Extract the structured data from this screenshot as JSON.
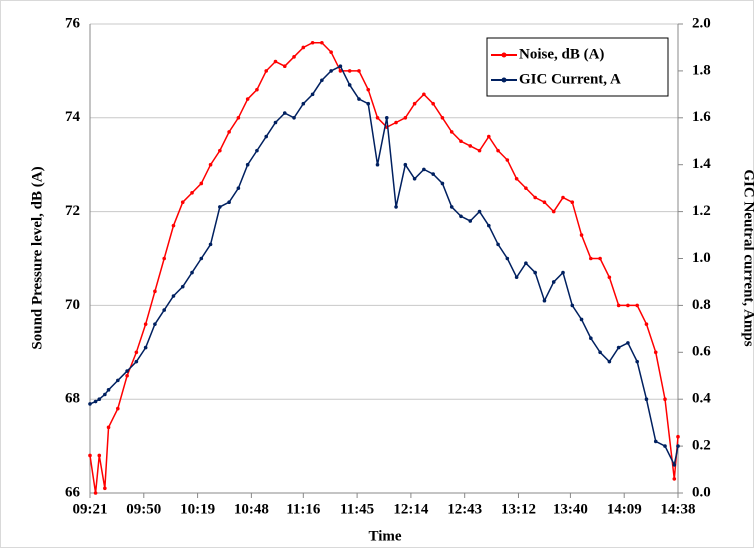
{
  "chart_data": {
    "type": "line",
    "x_label": "Time",
    "y_label": "Sound Pressure level, dB (A)",
    "y2_label": "GIC Neutral current, Amps",
    "x": [
      "09:21",
      "09:24",
      "09:26",
      "09:29",
      "09:31",
      "09:36",
      "09:41",
      "09:46",
      "09:51",
      "09:56",
      "10:01",
      "10:06",
      "10:11",
      "10:16",
      "10:21",
      "10:26",
      "10:31",
      "10:36",
      "10:41",
      "10:46",
      "10:51",
      "10:56",
      "11:01",
      "11:06",
      "11:11",
      "11:16",
      "11:21",
      "11:26",
      "11:31",
      "11:36",
      "11:41",
      "11:46",
      "11:51",
      "11:56",
      "12:01",
      "12:06",
      "12:11",
      "12:16",
      "12:21",
      "12:26",
      "12:31",
      "12:36",
      "12:41",
      "12:46",
      "12:51",
      "12:56",
      "13:01",
      "13:06",
      "13:11",
      "13:16",
      "13:21",
      "13:26",
      "13:31",
      "13:36",
      "13:41",
      "13:46",
      "13:51",
      "13:56",
      "14:01",
      "14:06",
      "14:11",
      "14:16",
      "14:21",
      "14:26",
      "14:31",
      "14:36",
      "14:38"
    ],
    "series": [
      {
        "name": "Noise, dB (A)",
        "color": "#ff0000",
        "axis": "y",
        "values": [
          66.8,
          66.0,
          66.8,
          66.1,
          67.4,
          67.8,
          68.5,
          69.0,
          69.6,
          70.3,
          71.0,
          71.7,
          72.2,
          72.4,
          72.6,
          73.0,
          73.3,
          73.7,
          74.0,
          74.4,
          74.6,
          75.0,
          75.2,
          75.1,
          75.3,
          75.5,
          75.6,
          75.6,
          75.4,
          75.0,
          75.0,
          75.0,
          74.6,
          74.0,
          73.8,
          73.9,
          74.0,
          74.3,
          74.5,
          74.3,
          74.0,
          73.7,
          73.5,
          73.4,
          73.3,
          73.6,
          73.3,
          73.1,
          72.7,
          72.5,
          72.3,
          72.2,
          72.0,
          72.3,
          72.2,
          71.5,
          71.0,
          71.0,
          70.6,
          70.0,
          70.0,
          70.0,
          69.6,
          69.0,
          68.0,
          66.3,
          67.2
        ]
      },
      {
        "name": "GIC Current, A",
        "color": "#002060",
        "axis": "y2",
        "values": [
          0.38,
          0.39,
          0.4,
          0.42,
          0.44,
          0.48,
          0.52,
          0.56,
          0.62,
          0.72,
          0.78,
          0.84,
          0.88,
          0.94,
          1.0,
          1.06,
          1.22,
          1.24,
          1.3,
          1.4,
          1.46,
          1.52,
          1.58,
          1.62,
          1.6,
          1.66,
          1.7,
          1.76,
          1.8,
          1.82,
          1.74,
          1.68,
          1.66,
          1.4,
          1.6,
          1.22,
          1.4,
          1.34,
          1.38,
          1.36,
          1.32,
          1.22,
          1.18,
          1.16,
          1.2,
          1.14,
          1.06,
          1.0,
          0.92,
          0.98,
          0.94,
          0.82,
          0.9,
          0.94,
          0.8,
          0.74,
          0.66,
          0.6,
          0.56,
          0.62,
          0.64,
          0.56,
          0.4,
          0.22,
          0.2,
          0.12,
          0.2
        ]
      }
    ],
    "xlim": [
      "09:21",
      "14:38"
    ],
    "xticks": [
      "09:21",
      "09:50",
      "10:19",
      "10:48",
      "11:16",
      "11:45",
      "12:14",
      "12:43",
      "13:12",
      "13:40",
      "14:09",
      "14:38"
    ],
    "ylim": [
      66,
      76
    ],
    "yticks": [
      66,
      68,
      70,
      72,
      74,
      76
    ],
    "y2lim": [
      0,
      2
    ],
    "y2ticks": [
      {
        "value": 0,
        "label": "0.0"
      },
      {
        "value": 0.2,
        "label": "0.2"
      },
      {
        "value": 0.4,
        "label": "0.4"
      },
      {
        "value": 0.6,
        "label": "0.6"
      },
      {
        "value": 0.8,
        "label": "0.8"
      },
      {
        "value": 1,
        "label": "1.0"
      },
      {
        "value": 1.2,
        "label": "1.2"
      },
      {
        "value": 1.4,
        "label": "1.4"
      },
      {
        "value": 1.6,
        "label": "1.6"
      },
      {
        "value": 1.8,
        "label": "1.8"
      },
      {
        "value": 2,
        "label": "2.0"
      }
    ],
    "grid": true,
    "legend": "upper right"
  }
}
